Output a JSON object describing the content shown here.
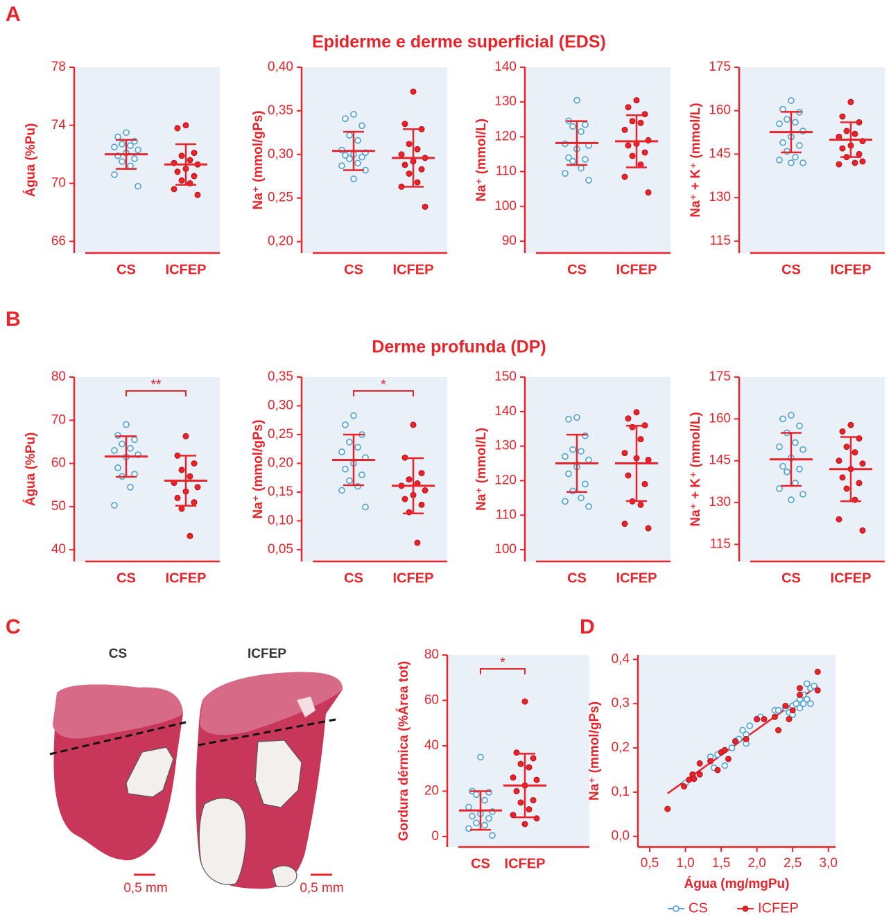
{
  "panel_labels": [
    "A",
    "B",
    "C",
    "D"
  ],
  "section_titles": [
    "Epiderme e derme superficial (EDS)",
    "Derme profunda (DP)"
  ],
  "histology": {
    "labels": [
      "CS",
      "ICFEP"
    ],
    "scale_bars": [
      "0,5 mm",
      "0,5 mm"
    ]
  },
  "chart_data": [
    {
      "type": "dotplot",
      "ylabel": "Água (%Pu)",
      "categories": [
        "CS",
        "ICFEP"
      ],
      "colors": [
        "#5aa8d8",
        "#e8232a"
      ],
      "ylim": [
        65.2,
        78
      ],
      "yticks": [
        66,
        70,
        74,
        78
      ],
      "points": [
        [
          73.5,
          73.2,
          72.9,
          72.7,
          72.6,
          72.5,
          72.3,
          72.1,
          71.9,
          71.7,
          71.5,
          71.2,
          70.6,
          69.8
        ],
        [
          74.0,
          73.8,
          72.1,
          71.9,
          71.6,
          71.4,
          71.3,
          71.0,
          70.8,
          70.5,
          70.2,
          70.0,
          69.6,
          69.2
        ]
      ],
      "means": [
        72.0,
        71.3
      ],
      "sd": [
        1.0,
        1.4
      ]
    },
    {
      "type": "dotplot",
      "ylabel": "Na⁺ (mmol/gPs)",
      "categories": [
        "CS",
        "ICFEP"
      ],
      "colors": [
        "#5aa8d8",
        "#e8232a"
      ],
      "ylim": [
        0.187,
        0.4
      ],
      "yticks": [
        {
          "value": 0.2,
          "label": "0,20"
        },
        {
          "value": 0.25,
          "label": "0,25"
        },
        {
          "value": 0.3,
          "label": "0,30"
        },
        {
          "value": 0.35,
          "label": "0,35"
        },
        {
          "value": 0.4,
          "label": "0,40"
        }
      ],
      "points": [
        [
          0.346,
          0.341,
          0.333,
          0.322,
          0.316,
          0.305,
          0.302,
          0.3,
          0.299,
          0.297,
          0.295,
          0.29,
          0.287,
          0.282,
          0.272
        ],
        [
          0.372,
          0.335,
          0.329,
          0.312,
          0.306,
          0.3,
          0.296,
          0.292,
          0.288,
          0.283,
          0.278,
          0.268,
          0.263,
          0.24
        ]
      ],
      "means": [
        0.304,
        0.296
      ],
      "sd": [
        0.022,
        0.033
      ]
    },
    {
      "type": "dotplot",
      "ylabel": "Na⁺ (mmol/L)",
      "categories": [
        "CS",
        "ICFEP"
      ],
      "colors": [
        "#5aa8d8",
        "#e8232a"
      ],
      "ylim": [
        86.6,
        140
      ],
      "yticks": [
        90,
        100,
        110,
        120,
        130,
        140
      ],
      "points": [
        [
          130.5,
          124.6,
          123.5,
          123,
          121.5,
          118,
          117.5,
          116.5,
          114,
          113.5,
          113,
          111,
          109.5,
          107.5
        ],
        [
          130.5,
          128.5,
          126.5,
          124.5,
          124,
          122,
          119,
          118,
          117.5,
          115.5,
          114.5,
          112,
          108.5,
          104
        ]
      ],
      "means": [
        118.2,
        118.7
      ],
      "sd": [
        6.3,
        7.5
      ]
    },
    {
      "type": "dotplot",
      "ylabel": "Na⁺ + K⁺ (mmol/L)",
      "categories": [
        "CS",
        "ICFEP"
      ],
      "colors": [
        "#5aa8d8",
        "#e8232a"
      ],
      "ylim": [
        110.9,
        175
      ],
      "yticks": [
        115,
        130,
        145,
        160,
        175
      ],
      "points": [
        [
          163.5,
          160.5,
          159.5,
          157,
          156,
          155.5,
          153,
          151,
          149,
          148,
          146,
          144,
          143,
          142,
          142
        ],
        [
          163,
          158,
          156,
          153,
          152,
          151,
          149.5,
          148,
          147,
          145,
          144,
          142,
          141.5,
          142.5
        ]
      ],
      "means": [
        152.6,
        150
      ],
      "sd": [
        7,
        6
      ]
    },
    {
      "type": "dotplot",
      "ylabel": "Água (%Pu)",
      "categories": [
        "CS",
        "ICFEP"
      ],
      "colors": [
        "#5aa8d8",
        "#e8232a"
      ],
      "ylim": [
        37.3,
        80
      ],
      "yticks": [
        40,
        50,
        60,
        70,
        80
      ],
      "significance": "**",
      "points": [
        [
          69,
          66.5,
          65.5,
          64.5,
          63.5,
          63,
          62,
          61.5,
          59,
          57.5,
          57,
          54.5,
          50.3
        ],
        [
          66.3,
          61.8,
          60,
          58.5,
          57,
          55.5,
          54.5,
          53.5,
          52,
          51,
          49.5,
          43.2
        ]
      ],
      "means": [
        61.6,
        56
      ],
      "sd": [
        4.7,
        5.8
      ]
    },
    {
      "type": "dotplot",
      "ylabel": "Na⁺ (mmol/gPs)",
      "categories": [
        "CS",
        "ICFEP"
      ],
      "colors": [
        "#5aa8d8",
        "#e8232a"
      ],
      "ylim": [
        0.0295,
        0.35
      ],
      "significance": "*",
      "yticks": [
        {
          "value": 0.05,
          "label": "0,05"
        },
        {
          "value": 0.1,
          "label": "0,10"
        },
        {
          "value": 0.15,
          "label": "0,15"
        },
        {
          "value": 0.2,
          "label": "0,20"
        },
        {
          "value": 0.25,
          "label": "0,25"
        },
        {
          "value": 0.3,
          "label": "0,30"
        },
        {
          "value": 0.35,
          "label": "0,35"
        }
      ],
      "points": [
        [
          0.283,
          0.267,
          0.25,
          0.237,
          0.228,
          0.22,
          0.21,
          0.2,
          0.19,
          0.18,
          0.17,
          0.16,
          0.153,
          0.124
        ],
        [
          0.267,
          0.21,
          0.183,
          0.172,
          0.165,
          0.161,
          0.153,
          0.145,
          0.138,
          0.128,
          0.115,
          0.062
        ]
      ],
      "means": [
        0.206,
        0.161
      ],
      "sd": [
        0.044,
        0.048
      ]
    },
    {
      "type": "dotplot",
      "ylabel": "Na⁺ (mmol/L)",
      "categories": [
        "CS",
        "ICFEP"
      ],
      "colors": [
        "#5aa8d8",
        "#e8232a"
      ],
      "ylim": [
        96.6,
        150
      ],
      "yticks": [
        100,
        110,
        120,
        130,
        140,
        150
      ],
      "points": [
        [
          138.3,
          137.8,
          133,
          129,
          128.5,
          127,
          126,
          124,
          122,
          119,
          117,
          115,
          114,
          112.5
        ],
        [
          139.8,
          138,
          136,
          135.5,
          132,
          128,
          126,
          126.5,
          121.5,
          119,
          114,
          113,
          107.5,
          106.2
        ]
      ],
      "means": [
        125,
        125
      ],
      "sd": [
        8.3,
        10.9
      ]
    },
    {
      "type": "dotplot",
      "ylabel": "Na⁺ + K⁺ (mmol/L)",
      "categories": [
        "CS",
        "ICFEP"
      ],
      "colors": [
        "#5aa8d8",
        "#e8232a"
      ],
      "ylim": [
        108.9,
        175
      ],
      "yticks": [
        115,
        130,
        145,
        160,
        175
      ],
      "points": [
        [
          161.3,
          160,
          157.5,
          155,
          151.5,
          150,
          149,
          146,
          143,
          142,
          141,
          137,
          135,
          133,
          131
        ],
        [
          157.8,
          155.5,
          153,
          150,
          148,
          145,
          144,
          142,
          139,
          137,
          135,
          131,
          124,
          120
        ]
      ],
      "means": [
        145.5,
        142
      ],
      "sd": [
        9.5,
        11.5
      ]
    },
    {
      "type": "dotplot",
      "ylabel": "Gordura dérmica (%Área tot)",
      "categories": [
        "CS",
        "ICFEP"
      ],
      "colors": [
        "#5aa8d8",
        "#e8232a"
      ],
      "ylim": [
        -4.6,
        80
      ],
      "yticks": [
        0,
        20,
        40,
        60,
        80
      ],
      "significance": "*",
      "points": [
        [
          35,
          20,
          19.5,
          18.5,
          16,
          13,
          11,
          10,
          9,
          8,
          6,
          5,
          3.5,
          0.5
        ],
        [
          59.5,
          37,
          34.5,
          32,
          30.5,
          26,
          25,
          22.5,
          20,
          16,
          15,
          12,
          9.5,
          8,
          5.5
        ]
      ],
      "means": [
        11.5,
        22.5
      ],
      "sd": [
        8.5,
        14
      ]
    },
    {
      "type": "scatter",
      "xlabel": "Água (mg/mgPu)",
      "ylabel": "Na⁺ (mmol/gPs)",
      "legend": "bottom",
      "xlim": [
        0.335,
        3.1
      ],
      "ylim": [
        -0.024,
        0.41
      ],
      "xticks": [
        {
          "value": 0.5,
          "label": "0,5"
        },
        {
          "value": 1.0,
          "label": "1,0"
        },
        {
          "value": 1.5,
          "label": "1,5"
        },
        {
          "value": 2.0,
          "label": "2,0"
        },
        {
          "value": 2.5,
          "label": "2,5"
        },
        {
          "value": 3.0,
          "label": "3,0"
        }
      ],
      "yticks": [
        {
          "value": 0.0,
          "label": "0,0"
        },
        {
          "value": 0.1,
          "label": "0,1"
        },
        {
          "value": 0.2,
          "label": "0,2"
        },
        {
          "value": 0.3,
          "label": "0,3"
        },
        {
          "value": 0.4,
          "label": "0,4"
        }
      ],
      "series": [
        {
          "name": "CS",
          "color": "#5aa8d8",
          "x": [
            1.0,
            1.35,
            1.4,
            1.45,
            1.55,
            1.65,
            1.7,
            1.75,
            1.8,
            1.85,
            1.85,
            1.9,
            2.0,
            2.05,
            2.25,
            2.3,
            2.4,
            2.45,
            2.5,
            2.5,
            2.55,
            2.6,
            2.6,
            2.65,
            2.65,
            2.7,
            2.75,
            2.75,
            2.8,
            2.7
          ],
          "y": [
            0.12,
            0.18,
            0.155,
            0.185,
            0.16,
            0.2,
            0.215,
            0.22,
            0.24,
            0.23,
            0.21,
            0.25,
            0.265,
            0.27,
            0.285,
            0.285,
            0.29,
            0.28,
            0.295,
            0.275,
            0.3,
            0.31,
            0.29,
            0.32,
            0.3,
            0.345,
            0.3,
            0.335,
            0.34,
            0.31
          ]
        },
        {
          "name": "ICFEP",
          "color": "#e8232a",
          "x": [
            0.75,
            0.98,
            1.05,
            1.1,
            1.12,
            1.2,
            1.2,
            1.35,
            1.45,
            1.5,
            1.6,
            1.7,
            1.85,
            2.0,
            2.1,
            2.25,
            2.3,
            2.4,
            2.45,
            2.5,
            2.6,
            2.6,
            2.85,
            2.85,
            1.55
          ],
          "y": [
            0.062,
            0.113,
            0.128,
            0.14,
            0.13,
            0.165,
            0.14,
            0.17,
            0.15,
            0.19,
            0.175,
            0.215,
            0.22,
            0.265,
            0.265,
            0.27,
            0.24,
            0.295,
            0.265,
            0.285,
            0.32,
            0.335,
            0.372,
            0.33,
            0.195
          ]
        }
      ],
      "fit": {
        "color": "#e8232a",
        "x": [
          0.75,
          2.85
        ],
        "y": [
          0.097,
          0.34
        ]
      }
    }
  ]
}
